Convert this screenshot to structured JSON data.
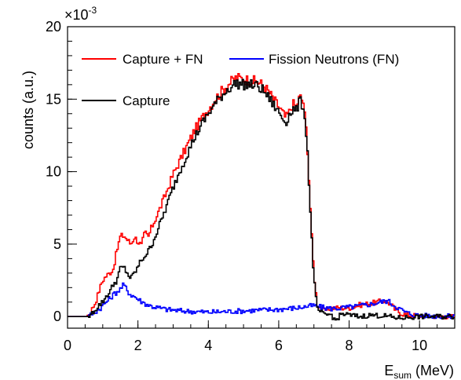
{
  "chart_data": {
    "type": "line",
    "step": true,
    "xlabel_main": "E",
    "xlabel_sub": "sum",
    "xlabel_unit": " (MeV)",
    "ylabel": "counts (a.u.)",
    "y_exponent_base": "×10",
    "y_exponent_power": "-3",
    "xlim": [
      0,
      11
    ],
    "ylim": [
      -0.8,
      20
    ],
    "x_ticks": [
      0,
      2,
      4,
      6,
      8,
      10
    ],
    "y_ticks": [
      0,
      5,
      10,
      15,
      20
    ],
    "legend_position": "top",
    "series": [
      {
        "name": "Capture + FN",
        "color": "#ff0000",
        "x": [
          0,
          0.55,
          0.65,
          0.8,
          0.9,
          1.0,
          1.1,
          1.2,
          1.3,
          1.4,
          1.5,
          1.6,
          1.7,
          1.8,
          1.9,
          2.0,
          2.1,
          2.2,
          2.3,
          2.4,
          2.6,
          2.8,
          3.0,
          3.2,
          3.4,
          3.6,
          3.8,
          4.0,
          4.2,
          4.4,
          4.6,
          4.8,
          5.0,
          5.2,
          5.4,
          5.6,
          5.8,
          6.0,
          6.2,
          6.3,
          6.4,
          6.5,
          6.6,
          6.7,
          6.8,
          6.85,
          6.9,
          6.95,
          7.0,
          7.05,
          7.1,
          7.2,
          7.3,
          7.5,
          7.7,
          8.0,
          8.3,
          8.6,
          8.8,
          9.0,
          9.1,
          9.2,
          9.3,
          9.5,
          9.7,
          10.0,
          10.5,
          11.0
        ],
        "y": [
          0,
          0,
          0.3,
          1.0,
          1.8,
          2.5,
          2.8,
          3.0,
          3.3,
          4.5,
          5.5,
          5.6,
          5.3,
          5.0,
          5.5,
          5.2,
          4.9,
          5.8,
          5.5,
          6.2,
          7.3,
          8.5,
          9.8,
          10.8,
          11.8,
          12.8,
          13.6,
          14.3,
          15.0,
          15.6,
          16.1,
          16.5,
          16.4,
          16.3,
          16.2,
          15.9,
          15.2,
          14.5,
          13.7,
          14.1,
          14.7,
          14.5,
          15.2,
          14.8,
          12.5,
          10.0,
          7.5,
          5.0,
          3.0,
          1.8,
          0.8,
          0.6,
          0.4,
          0.6,
          0.6,
          0.6,
          0.8,
          0.9,
          1.0,
          1.1,
          1.0,
          0.8,
          0.5,
          0.2,
          0.1,
          0.05,
          0.02,
          0.0
        ]
      },
      {
        "name": "Fission Neutrons (FN)",
        "color": "#0000ff",
        "x": [
          0,
          0.6,
          0.7,
          0.9,
          1.1,
          1.3,
          1.5,
          1.6,
          1.7,
          1.8,
          1.9,
          2.0,
          2.2,
          2.4,
          2.8,
          3.2,
          3.6,
          4.0,
          4.5,
          5.0,
          5.5,
          6.0,
          6.5,
          6.8,
          7.0,
          7.2,
          7.5,
          7.8,
          8.2,
          8.6,
          8.8,
          9.0,
          9.1,
          9.2,
          9.4,
          9.6,
          9.8,
          10.0,
          10.4,
          11.0
        ],
        "y": [
          0,
          0,
          0.2,
          0.5,
          1.0,
          1.5,
          1.9,
          2.2,
          1.8,
          1.5,
          1.4,
          1.2,
          0.9,
          0.7,
          0.5,
          0.4,
          0.35,
          0.3,
          0.35,
          0.4,
          0.45,
          0.5,
          0.6,
          0.7,
          0.75,
          0.65,
          0.55,
          0.6,
          0.7,
          0.85,
          0.95,
          1.05,
          1.1,
          0.9,
          0.6,
          0.3,
          0.15,
          0.08,
          0.04,
          0.0
        ]
      },
      {
        "name": "Capture",
        "color": "#000000",
        "x": [
          0,
          0.55,
          0.65,
          0.8,
          0.9,
          1.0,
          1.1,
          1.2,
          1.3,
          1.4,
          1.5,
          1.6,
          1.7,
          1.8,
          1.9,
          2.0,
          2.1,
          2.2,
          2.3,
          2.4,
          2.6,
          2.8,
          3.0,
          3.2,
          3.4,
          3.6,
          3.8,
          4.0,
          4.2,
          4.4,
          4.6,
          4.8,
          5.0,
          5.2,
          5.4,
          5.6,
          5.8,
          6.0,
          6.2,
          6.3,
          6.4,
          6.5,
          6.6,
          6.7,
          6.8,
          6.85,
          6.9,
          6.95,
          7.0,
          7.05,
          7.1,
          7.2,
          7.3,
          7.5,
          7.6,
          7.8,
          8.0,
          8.3,
          8.6,
          9.0,
          9.4,
          10.0,
          10.5,
          11.0
        ],
        "y": [
          0,
          0,
          0.1,
          0.5,
          0.8,
          1.0,
          1.4,
          1.7,
          2.2,
          2.5,
          3.3,
          3.4,
          3.0,
          2.6,
          3.0,
          3.4,
          3.9,
          4.2,
          4.5,
          5.0,
          6.2,
          7.5,
          8.9,
          10.1,
          11.2,
          12.3,
          13.2,
          14.0,
          14.7,
          15.3,
          15.8,
          16.1,
          16.0,
          16.0,
          15.9,
          15.5,
          14.8,
          14.1,
          13.4,
          13.9,
          14.3,
          14.2,
          14.9,
          14.5,
          12.3,
          9.8,
          7.2,
          4.8,
          2.7,
          1.4,
          0.5,
          0.3,
          0.1,
          0.15,
          -0.3,
          0.2,
          0.1,
          0.0,
          0.1,
          0.05,
          -0.1,
          0.0,
          0.0,
          0.0
        ]
      }
    ]
  }
}
